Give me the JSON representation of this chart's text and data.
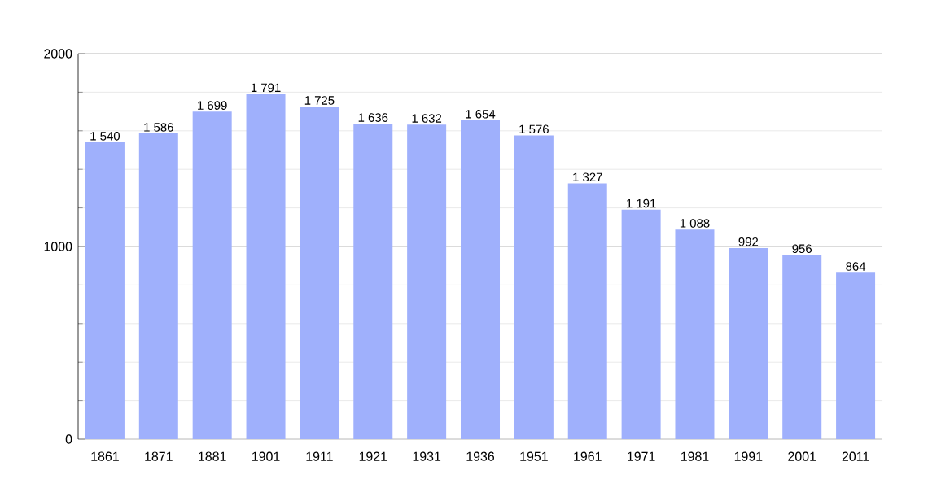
{
  "chart_data": {
    "type": "bar",
    "categories": [
      "1861",
      "1871",
      "1881",
      "1901",
      "1911",
      "1921",
      "1931",
      "1936",
      "1951",
      "1961",
      "1971",
      "1981",
      "1991",
      "2001",
      "2011"
    ],
    "values": [
      1540,
      1586,
      1699,
      1791,
      1725,
      1636,
      1632,
      1654,
      1576,
      1327,
      1191,
      1088,
      992,
      956,
      864
    ],
    "value_labels": [
      "1 540",
      "1 586",
      "1 699",
      "1 791",
      "1 725",
      "1 636",
      "1 632",
      "1 654",
      "1 576",
      "1 327",
      "1 191",
      "1 088",
      "992",
      "956",
      "864"
    ],
    "color": "#9fb0fc",
    "ylim": [
      0,
      2000
    ],
    "yticks": [
      0,
      1000,
      2000
    ],
    "grid": "y"
  }
}
